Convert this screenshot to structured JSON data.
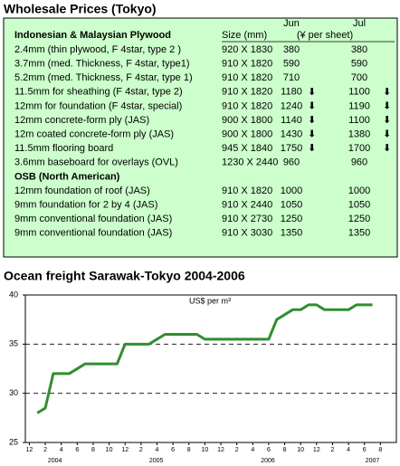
{
  "header": {
    "title": "Wholesale Prices (Tokyo)"
  },
  "table": {
    "columns": {
      "item": "Indonesian & Malaysian Plywood",
      "size": "Size (mm)",
      "jun": "Jun",
      "jul": "Jul",
      "unit": "(¥ per sheet)"
    },
    "sections": [
      {
        "rows": [
          {
            "item": "2.4mm  (thin plywood, F 4star, type 2 )",
            "size": "920 X 1830",
            "jun": "380",
            "jul": "380"
          },
          {
            "item": "3.7mm  (med. Thickness,  F 4star, type1)",
            "size": "910 X 1820",
            "jun": "590",
            "jul": "590"
          },
          {
            "item": "5.2mm  (med. Thickness, F 4star, type 1)",
            "size": "910 X 1820",
            "jun": "710",
            "jul": "700"
          },
          {
            "item": "11.5mm  for sheathing (F 4star, type 2)",
            "size": "910 X 1820",
            "jun": "1180",
            "jul": "1100",
            "jun_trend": "⬇",
            "jul_trend": "⬇"
          },
          {
            "item": "12mm for foundation (F 4star, special)",
            "size": "910 X 1820",
            "jun": "1240",
            "jul": "1190",
            "jun_trend": "⬇",
            "jul_trend": "⬇"
          },
          {
            "item": "12mm concrete-form ply (JAS)",
            "size": "900 X 1800",
            "jun": "1140",
            "jul": "1100",
            "jun_trend": "⬇",
            "jul_trend": "⬇"
          },
          {
            "item": "12m coated concrete-form ply (JAS)",
            "size": "900 X 1800",
            "jun": "1430",
            "jul": "1380",
            "jun_trend": "⬇",
            "jul_trend": "⬇"
          },
          {
            "item": "11.5mm flooring board",
            "size": "945 X 1840",
            "jun": "1750",
            "jul": "1700",
            "jun_trend": "⬇",
            "jul_trend": "⬇"
          },
          {
            "item": "3.6mm baseboard for overlays (OVL)",
            "size": "1230 X 2440",
            "jun": "960",
            "jul": "960"
          }
        ]
      },
      {
        "title": "OSB (North American)",
        "rows": [
          {
            "item": "12mm foundation of roof (JAS)",
            "size": "910 X 1820",
            "jun": "1000",
            "jul": "1000"
          },
          {
            "item": "9mm foundation for 2 by 4 (JAS)",
            "size": "910 X 2440",
            "jun": "1050",
            "jul": "1050"
          },
          {
            "item": "9mm conventional foundation (JAS)",
            "size": "910 X 2730",
            "jun": "1250",
            "jul": "1250"
          },
          {
            "item": "9mm conventional foundation (JAS)",
            "size": "910 X 3030",
            "jun": "1350",
            "jul": "1350"
          }
        ]
      }
    ]
  },
  "chart_data": {
    "type": "line",
    "title": "Ocean freight Sarawak-Tokyo 2004-2006",
    "annotation": "US$ per m³",
    "color": "#2f8f2f",
    "x": [
      1,
      2,
      3,
      5,
      7,
      11,
      12,
      15,
      17,
      21,
      22,
      30,
      31,
      33,
      34,
      35,
      36,
      37,
      40,
      41,
      43
    ],
    "values": [
      28,
      28.5,
      32,
      32,
      33,
      33,
      35,
      35,
      36,
      36,
      35.5,
      35.5,
      37.5,
      38.5,
      38.5,
      39,
      39,
      38.5,
      38.5,
      39,
      39
    ],
    "xlim": [
      -0.5,
      46
    ],
    "ylim": [
      25,
      40
    ],
    "yticks": [
      25,
      30,
      35,
      40
    ],
    "xticks": [
      {
        "value": 0,
        "label": "12"
      },
      {
        "value": 2,
        "label": "2"
      },
      {
        "value": 4,
        "label": "4"
      },
      {
        "value": 6,
        "label": "6"
      },
      {
        "value": 8,
        "label": "8"
      },
      {
        "value": 10,
        "label": "10"
      },
      {
        "value": 12,
        "label": "12"
      },
      {
        "value": 14,
        "label": "2"
      },
      {
        "value": 16,
        "label": "4"
      },
      {
        "value": 18,
        "label": "6"
      },
      {
        "value": 20,
        "label": "8"
      },
      {
        "value": 22,
        "label": "10"
      },
      {
        "value": 24,
        "label": "12"
      },
      {
        "value": 26,
        "label": "2"
      },
      {
        "value": 28,
        "label": "4"
      },
      {
        "value": 30,
        "label": "6"
      },
      {
        "value": 32,
        "label": "8"
      },
      {
        "value": 34,
        "label": "10"
      },
      {
        "value": 36,
        "label": "12"
      },
      {
        "value": 38,
        "label": "2"
      },
      {
        "value": 40,
        "label": "4"
      },
      {
        "value": 42,
        "label": "6"
      },
      {
        "value": 44,
        "label": "8"
      }
    ],
    "year_labels": [
      {
        "value": 3.2,
        "label": "2004"
      },
      {
        "value": 15.9,
        "label": "2005"
      },
      {
        "value": 29.9,
        "label": "2006"
      },
      {
        "value": 43,
        "label": "2007"
      }
    ],
    "grid": true
  }
}
